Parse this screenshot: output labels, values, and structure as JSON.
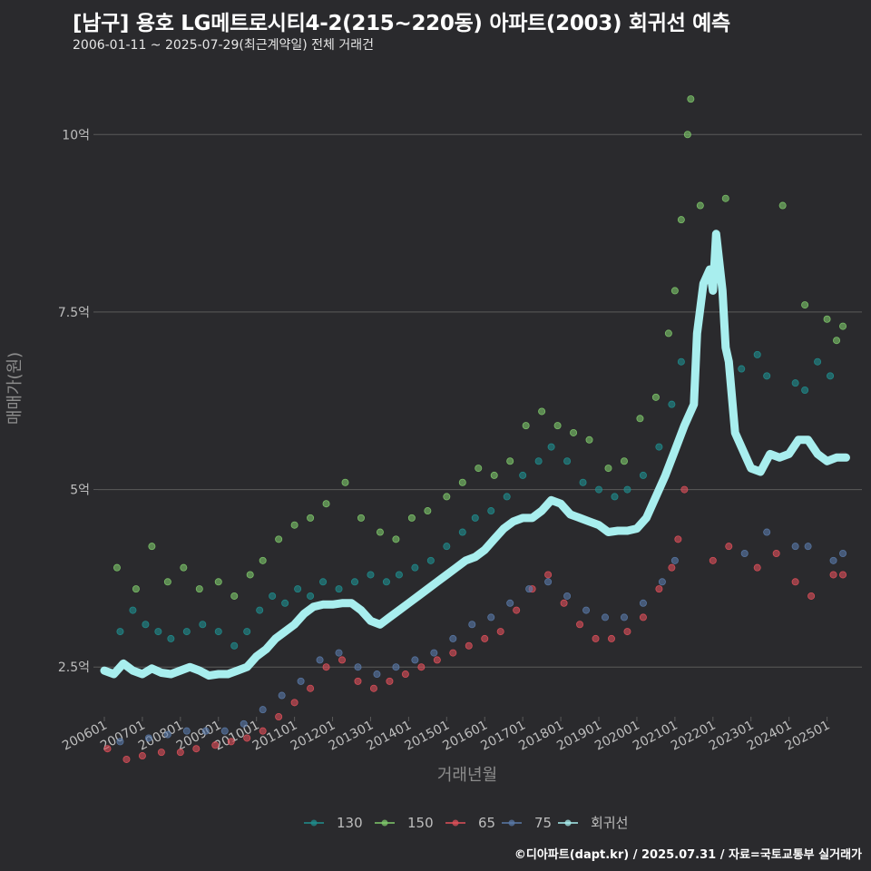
{
  "header": {
    "title": "[남구] 용호 LG메트로시티4-2(215~220동) 아파트(2003) 회귀선 예측",
    "subtitle": "2006-01-11 ~ 2025-07-29(최근계약일) 전체 거래건"
  },
  "footer": {
    "credit": "©디아파트(dapt.kr) / 2025.07.31 / 자료=국토교통부 실거래가"
  },
  "colors": {
    "background": "#2a2a2d",
    "grid": "#5a5a5a",
    "s130": "#1f8f8f",
    "s150": "#7fc96b",
    "s65": "#e0505a",
    "s75": "#5a7aa8",
    "regression": "#a8eeee"
  },
  "chart_data": {
    "type": "scatter",
    "xlabel": "거래년월",
    "ylabel": "매매가(원)",
    "x_range": [
      "2005-11",
      "2025-12"
    ],
    "ylim": [
      1.8,
      11.0
    ],
    "y_unit": "억",
    "y_ticks": [
      {
        "value": 2.5,
        "label": "2.5억"
      },
      {
        "value": 5,
        "label": "5억"
      },
      {
        "value": 7.5,
        "label": "7.5억"
      },
      {
        "value": 10,
        "label": "10억"
      }
    ],
    "x_ticks": [
      "200601",
      "200701",
      "200801",
      "200901",
      "201001",
      "201101",
      "201201",
      "201301",
      "201401",
      "201501",
      "201601",
      "201701",
      "201801",
      "201901",
      "202001",
      "202101",
      "202201",
      "202301",
      "202401",
      "202501"
    ],
    "legend": [
      "130",
      "150",
      "65",
      "75",
      "회귀선"
    ],
    "legend_position": "bottom",
    "series": [
      {
        "name": "130",
        "type": "scatter",
        "points": [
          [
            "2006-06",
            3.0
          ],
          [
            "2006-10",
            3.3
          ],
          [
            "2007-02",
            3.1
          ],
          [
            "2007-06",
            3.0
          ],
          [
            "2007-10",
            2.9
          ],
          [
            "2008-03",
            3.0
          ],
          [
            "2008-08",
            3.1
          ],
          [
            "2009-01",
            3.0
          ],
          [
            "2009-06",
            2.8
          ],
          [
            "2009-10",
            3.0
          ],
          [
            "2010-02",
            3.3
          ],
          [
            "2010-06",
            3.5
          ],
          [
            "2010-10",
            3.4
          ],
          [
            "2011-02",
            3.6
          ],
          [
            "2011-06",
            3.5
          ],
          [
            "2011-10",
            3.7
          ],
          [
            "2012-03",
            3.6
          ],
          [
            "2012-08",
            3.7
          ],
          [
            "2013-01",
            3.8
          ],
          [
            "2013-06",
            3.7
          ],
          [
            "2013-10",
            3.8
          ],
          [
            "2014-03",
            3.9
          ],
          [
            "2014-08",
            4.0
          ],
          [
            "2015-01",
            4.2
          ],
          [
            "2015-06",
            4.4
          ],
          [
            "2015-10",
            4.6
          ],
          [
            "2016-03",
            4.7
          ],
          [
            "2016-08",
            4.9
          ],
          [
            "2017-01",
            5.2
          ],
          [
            "2017-06",
            5.4
          ],
          [
            "2017-10",
            5.6
          ],
          [
            "2018-03",
            5.4
          ],
          [
            "2018-08",
            5.1
          ],
          [
            "2019-01",
            5.0
          ],
          [
            "2019-06",
            4.9
          ],
          [
            "2019-10",
            5.0
          ],
          [
            "2020-03",
            5.2
          ],
          [
            "2020-08",
            5.6
          ],
          [
            "2020-12",
            6.2
          ],
          [
            "2021-03",
            6.8
          ],
          [
            "2022-10",
            6.7
          ],
          [
            "2023-03",
            6.9
          ],
          [
            "2023-06",
            6.6
          ],
          [
            "2024-03",
            6.5
          ],
          [
            "2024-06",
            6.4
          ],
          [
            "2024-10",
            6.8
          ],
          [
            "2025-02",
            6.6
          ]
        ]
      },
      {
        "name": "150",
        "type": "scatter",
        "points": [
          [
            "2006-05",
            3.9
          ],
          [
            "2006-11",
            3.6
          ],
          [
            "2007-04",
            4.2
          ],
          [
            "2007-09",
            3.7
          ],
          [
            "2008-02",
            3.9
          ],
          [
            "2008-07",
            3.6
          ],
          [
            "2009-01",
            3.7
          ],
          [
            "2009-06",
            3.5
          ],
          [
            "2009-11",
            3.8
          ],
          [
            "2010-03",
            4.0
          ],
          [
            "2010-08",
            4.3
          ],
          [
            "2011-01",
            4.5
          ],
          [
            "2011-06",
            4.6
          ],
          [
            "2011-11",
            4.8
          ],
          [
            "2012-05",
            5.1
          ],
          [
            "2012-10",
            4.6
          ],
          [
            "2013-04",
            4.4
          ],
          [
            "2013-09",
            4.3
          ],
          [
            "2014-02",
            4.6
          ],
          [
            "2014-07",
            4.7
          ],
          [
            "2015-01",
            4.9
          ],
          [
            "2015-06",
            5.1
          ],
          [
            "2015-11",
            5.3
          ],
          [
            "2016-04",
            5.2
          ],
          [
            "2016-09",
            5.4
          ],
          [
            "2017-02",
            5.9
          ],
          [
            "2017-07",
            6.1
          ],
          [
            "2017-12",
            5.9
          ],
          [
            "2018-05",
            5.8
          ],
          [
            "2018-10",
            5.7
          ],
          [
            "2019-04",
            5.3
          ],
          [
            "2019-09",
            5.4
          ],
          [
            "2020-02",
            6.0
          ],
          [
            "2020-07",
            6.3
          ],
          [
            "2020-11",
            7.2
          ],
          [
            "2021-01",
            7.8
          ],
          [
            "2021-03",
            8.8
          ],
          [
            "2021-05",
            10.0
          ],
          [
            "2021-06",
            10.5
          ],
          [
            "2021-09",
            9.0
          ],
          [
            "2022-05",
            9.1
          ],
          [
            "2023-11",
            9.0
          ],
          [
            "2024-06",
            7.6
          ],
          [
            "2025-01",
            7.4
          ],
          [
            "2025-04",
            7.1
          ],
          [
            "2025-06",
            7.3
          ]
        ]
      },
      {
        "name": "65",
        "type": "scatter",
        "points": [
          [
            "2006-02",
            1.35
          ],
          [
            "2006-08",
            1.2
          ],
          [
            "2007-01",
            1.25
          ],
          [
            "2007-07",
            1.3
          ],
          [
            "2008-01",
            1.3
          ],
          [
            "2008-06",
            1.35
          ],
          [
            "2008-12",
            1.4
          ],
          [
            "2009-05",
            1.45
          ],
          [
            "2009-10",
            1.5
          ],
          [
            "2010-03",
            1.6
          ],
          [
            "2010-08",
            1.8
          ],
          [
            "2011-01",
            2.0
          ],
          [
            "2011-06",
            2.2
          ],
          [
            "2011-11",
            2.5
          ],
          [
            "2012-04",
            2.6
          ],
          [
            "2012-09",
            2.3
          ],
          [
            "2013-02",
            2.2
          ],
          [
            "2013-07",
            2.3
          ],
          [
            "2013-12",
            2.4
          ],
          [
            "2014-05",
            2.5
          ],
          [
            "2014-10",
            2.6
          ],
          [
            "2015-03",
            2.7
          ],
          [
            "2015-08",
            2.8
          ],
          [
            "2016-01",
            2.9
          ],
          [
            "2016-06",
            3.0
          ],
          [
            "2016-11",
            3.3
          ],
          [
            "2017-04",
            3.6
          ],
          [
            "2017-09",
            3.8
          ],
          [
            "2018-02",
            3.4
          ],
          [
            "2018-07",
            3.1
          ],
          [
            "2018-12",
            2.9
          ],
          [
            "2019-05",
            2.9
          ],
          [
            "2019-10",
            3.0
          ],
          [
            "2020-03",
            3.2
          ],
          [
            "2020-08",
            3.6
          ],
          [
            "2020-12",
            3.9
          ],
          [
            "2021-02",
            4.3
          ],
          [
            "2021-04",
            5.0
          ],
          [
            "2022-01",
            4.0
          ],
          [
            "2022-06",
            4.2
          ],
          [
            "2023-03",
            3.9
          ],
          [
            "2023-09",
            4.1
          ],
          [
            "2024-03",
            3.7
          ],
          [
            "2024-08",
            3.5
          ],
          [
            "2025-03",
            3.8
          ],
          [
            "2025-06",
            3.8
          ]
        ]
      },
      {
        "name": "75",
        "type": "scatter",
        "points": [
          [
            "2006-06",
            1.45
          ],
          [
            "2007-03",
            1.5
          ],
          [
            "2007-09",
            1.55
          ],
          [
            "2008-03",
            1.6
          ],
          [
            "2008-09",
            1.6
          ],
          [
            "2009-03",
            1.6
          ],
          [
            "2009-09",
            1.7
          ],
          [
            "2010-03",
            1.9
          ],
          [
            "2010-09",
            2.1
          ],
          [
            "2011-03",
            2.3
          ],
          [
            "2011-09",
            2.6
          ],
          [
            "2012-03",
            2.7
          ],
          [
            "2012-09",
            2.5
          ],
          [
            "2013-03",
            2.4
          ],
          [
            "2013-09",
            2.5
          ],
          [
            "2014-03",
            2.6
          ],
          [
            "2014-09",
            2.7
          ],
          [
            "2015-03",
            2.9
          ],
          [
            "2015-09",
            3.1
          ],
          [
            "2016-03",
            3.2
          ],
          [
            "2016-09",
            3.4
          ],
          [
            "2017-03",
            3.6
          ],
          [
            "2017-09",
            3.7
          ],
          [
            "2018-03",
            3.5
          ],
          [
            "2018-09",
            3.3
          ],
          [
            "2019-03",
            3.2
          ],
          [
            "2019-09",
            3.2
          ],
          [
            "2020-03",
            3.4
          ],
          [
            "2020-09",
            3.7
          ],
          [
            "2021-01",
            4.0
          ],
          [
            "2022-11",
            4.1
          ],
          [
            "2023-06",
            4.4
          ],
          [
            "2024-03",
            4.2
          ],
          [
            "2024-07",
            4.2
          ],
          [
            "2025-03",
            4.0
          ],
          [
            "2025-06",
            4.1
          ]
        ]
      },
      {
        "name": "회귀선",
        "type": "line",
        "points": [
          [
            "2006-01",
            2.45
          ],
          [
            "2006-04",
            2.4
          ],
          [
            "2006-07",
            2.55
          ],
          [
            "2006-10",
            2.45
          ],
          [
            "2007-01",
            2.4
          ],
          [
            "2007-04",
            2.48
          ],
          [
            "2007-07",
            2.42
          ],
          [
            "2007-10",
            2.4
          ],
          [
            "2008-01",
            2.45
          ],
          [
            "2008-04",
            2.5
          ],
          [
            "2008-07",
            2.45
          ],
          [
            "2008-10",
            2.38
          ],
          [
            "2009-01",
            2.4
          ],
          [
            "2009-04",
            2.4
          ],
          [
            "2009-07",
            2.45
          ],
          [
            "2009-10",
            2.5
          ],
          [
            "2010-01",
            2.65
          ],
          [
            "2010-04",
            2.75
          ],
          [
            "2010-07",
            2.9
          ],
          [
            "2010-10",
            3.0
          ],
          [
            "2011-01",
            3.1
          ],
          [
            "2011-04",
            3.25
          ],
          [
            "2011-07",
            3.35
          ],
          [
            "2011-10",
            3.38
          ],
          [
            "2012-01",
            3.38
          ],
          [
            "2012-04",
            3.4
          ],
          [
            "2012-07",
            3.4
          ],
          [
            "2012-10",
            3.3
          ],
          [
            "2013-01",
            3.15
          ],
          [
            "2013-04",
            3.1
          ],
          [
            "2013-07",
            3.2
          ],
          [
            "2013-10",
            3.3
          ],
          [
            "2014-01",
            3.4
          ],
          [
            "2014-04",
            3.5
          ],
          [
            "2014-07",
            3.6
          ],
          [
            "2014-10",
            3.7
          ],
          [
            "2015-01",
            3.8
          ],
          [
            "2015-04",
            3.9
          ],
          [
            "2015-07",
            4.0
          ],
          [
            "2015-10",
            4.05
          ],
          [
            "2016-01",
            4.15
          ],
          [
            "2016-04",
            4.3
          ],
          [
            "2016-07",
            4.45
          ],
          [
            "2016-10",
            4.55
          ],
          [
            "2017-01",
            4.6
          ],
          [
            "2017-04",
            4.6
          ],
          [
            "2017-07",
            4.7
          ],
          [
            "2017-10",
            4.85
          ],
          [
            "2018-01",
            4.8
          ],
          [
            "2018-04",
            4.65
          ],
          [
            "2018-07",
            4.6
          ],
          [
            "2018-10",
            4.55
          ],
          [
            "2019-01",
            4.5
          ],
          [
            "2019-04",
            4.4
          ],
          [
            "2019-07",
            4.42
          ],
          [
            "2019-10",
            4.42
          ],
          [
            "2020-01",
            4.45
          ],
          [
            "2020-04",
            4.6
          ],
          [
            "2020-07",
            4.9
          ],
          [
            "2020-10",
            5.2
          ],
          [
            "2021-01",
            5.55
          ],
          [
            "2021-04",
            5.9
          ],
          [
            "2021-07",
            6.2
          ],
          [
            "2021-08",
            7.2
          ],
          [
            "2021-10",
            7.9
          ],
          [
            "2021-12",
            8.1
          ],
          [
            "2022-01",
            7.8
          ],
          [
            "2022-02",
            8.6
          ],
          [
            "2022-04",
            7.8
          ],
          [
            "2022-05",
            7.0
          ],
          [
            "2022-06",
            6.8
          ],
          [
            "2022-08",
            5.8
          ],
          [
            "2022-10",
            5.6
          ],
          [
            "2023-01",
            5.3
          ],
          [
            "2023-04",
            5.25
          ],
          [
            "2023-07",
            5.5
          ],
          [
            "2023-10",
            5.45
          ],
          [
            "2024-01",
            5.5
          ],
          [
            "2024-04",
            5.7
          ],
          [
            "2024-07",
            5.7
          ],
          [
            "2024-10",
            5.5
          ],
          [
            "2025-01",
            5.4
          ],
          [
            "2025-04",
            5.45
          ],
          [
            "2025-07",
            5.45
          ]
        ]
      }
    ]
  }
}
